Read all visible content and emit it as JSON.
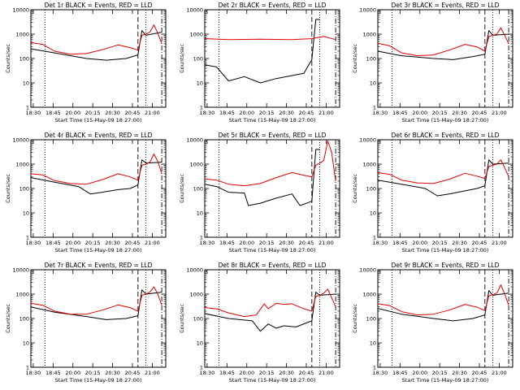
{
  "colors": {
    "events": "#000000",
    "lld": "#e00000",
    "axes": "#000000"
  },
  "chart_data": [
    {
      "type": "line",
      "title": "Det 1r  BLACK = Events, RED = LLD",
      "xlabel": "Start Time (15-May-09 18:27:00)",
      "ylabel": "Counts/sec",
      "yscale": "log",
      "ylim": [
        1,
        10000
      ],
      "grid": false,
      "x_ticks": [
        "18:30",
        "18:45",
        "20:00",
        "20:15",
        "20:30",
        "20:45",
        "21:00"
      ],
      "y_ticks": [
        "1",
        "10",
        "100",
        "1000",
        "10000"
      ],
      "series": [
        {
          "color": "black",
          "x_min": [
            0,
            30,
            70,
            95,
            120,
            135,
            140,
            145,
            165
          ],
          "values": [
            250,
            170,
            100,
            85,
            100,
            140,
            1400,
            900,
            1200
          ]
        },
        {
          "color": "red",
          "x_min": [
            0,
            15,
            30,
            50,
            70,
            90,
            110,
            125,
            135,
            140,
            145,
            150,
            155,
            160,
            165
          ],
          "values": [
            450,
            380,
            200,
            150,
            160,
            230,
            360,
            280,
            220,
            900,
            1000,
            1200,
            2400,
            1100,
            400
          ]
        }
      ],
      "markers": [
        {
          "x_min": 18,
          "style": "dotted"
        },
        {
          "x_min": 135,
          "style": "dashed"
        },
        {
          "x_min": 145,
          "style": "dotted"
        },
        {
          "x_min": 165,
          "style": "dash-dot"
        }
      ]
    },
    {
      "type": "line",
      "title": "Det 2r  BLACK = Events, RED = LLD",
      "xlabel": "Start Time (15-May-09 18:27:00)",
      "ylabel": "Counts/sec",
      "yscale": "log",
      "ylim": [
        1,
        10000
      ],
      "grid": false,
      "x_ticks": [
        "18:30",
        "18:45",
        "20:00",
        "20:15",
        "20:30",
        "20:45",
        "21:00"
      ],
      "y_ticks": [
        "1",
        "10",
        "100",
        "1000",
        "10000"
      ],
      "series": [
        {
          "color": "black",
          "x_min": [
            0,
            15,
            30,
            50,
            70,
            90,
            110,
            125,
            135,
            140,
            145
          ],
          "values": [
            55,
            45,
            12,
            18,
            10,
            15,
            20,
            25,
            90,
            4000,
            4000
          ]
        },
        {
          "color": "red",
          "x_min": [
            0,
            30,
            70,
            110,
            135,
            140,
            150,
            165
          ],
          "values": [
            650,
            600,
            620,
            600,
            650,
            700,
            800,
            600
          ]
        }
      ],
      "markers": [
        {
          "x_min": 18,
          "style": "dotted"
        },
        {
          "x_min": 135,
          "style": "dashed"
        },
        {
          "x_min": 145,
          "style": "dotted"
        },
        {
          "x_min": 165,
          "style": "dash-dot"
        }
      ]
    },
    {
      "type": "line",
      "title": "Det 3r  BLACK = Events, RED = LLD",
      "xlabel": "Start Time (15-May-09 18:27:00)",
      "ylabel": "Counts/sec",
      "yscale": "log",
      "ylim": [
        1,
        10000
      ],
      "grid": false,
      "x_ticks": [
        "18:30",
        "18:45",
        "20:00",
        "20:15",
        "20:30",
        "20:45",
        "21:00"
      ],
      "y_ticks": [
        "1",
        "10",
        "100",
        "1000",
        "10000"
      ],
      "series": [
        {
          "color": "black",
          "x_min": [
            0,
            30,
            70,
            95,
            120,
            135,
            140,
            145,
            165
          ],
          "values": [
            200,
            130,
            100,
            90,
            120,
            150,
            1400,
            900,
            1000
          ]
        },
        {
          "color": "red",
          "x_min": [
            0,
            15,
            30,
            50,
            70,
            90,
            110,
            125,
            135,
            140,
            145,
            150,
            155,
            160,
            165
          ],
          "values": [
            420,
            330,
            170,
            130,
            140,
            220,
            380,
            300,
            200,
            800,
            900,
            1000,
            1800,
            900,
            400
          ]
        }
      ],
      "markers": [
        {
          "x_min": 18,
          "style": "dotted"
        },
        {
          "x_min": 135,
          "style": "dashed"
        },
        {
          "x_min": 145,
          "style": "dotted"
        },
        {
          "x_min": 165,
          "style": "dash-dot"
        }
      ]
    },
    {
      "type": "line",
      "title": "Det 4r  BLACK = Events, RED = LLD",
      "xlabel": "Start Time (15-May-09 18:27:00)",
      "ylabel": "Counts/sec",
      "yscale": "log",
      "ylim": [
        1,
        10000
      ],
      "grid": false,
      "x_ticks": [
        "18:30",
        "18:45",
        "20:00",
        "20:15",
        "20:30",
        "20:45",
        "21:00"
      ],
      "y_ticks": [
        "1",
        "10",
        "100",
        "1000",
        "10000"
      ],
      "series": [
        {
          "color": "black",
          "x_min": [
            0,
            30,
            60,
            75,
            90,
            110,
            125,
            135,
            140,
            145,
            165
          ],
          "values": [
            280,
            180,
            120,
            60,
            70,
            90,
            100,
            140,
            1500,
            1100,
            1200
          ]
        },
        {
          "color": "red",
          "x_min": [
            0,
            15,
            30,
            50,
            70,
            90,
            110,
            125,
            135,
            140,
            145,
            150,
            155,
            160,
            165
          ],
          "values": [
            400,
            360,
            210,
            160,
            150,
            230,
            400,
            300,
            220,
            900,
            1000,
            1200,
            2600,
            1300,
            400
          ]
        }
      ],
      "markers": [
        {
          "x_min": 18,
          "style": "dotted"
        },
        {
          "x_min": 135,
          "style": "dashed"
        },
        {
          "x_min": 145,
          "style": "dotted"
        },
        {
          "x_min": 165,
          "style": "dash-dot"
        }
      ]
    },
    {
      "type": "line",
      "title": "Det 5r  BLACK = Events, RED = LLD",
      "xlabel": "Start Time (15-May-09 18:27:00)",
      "ylabel": "Counts/sec",
      "yscale": "log",
      "ylim": [
        1,
        10000
      ],
      "grid": false,
      "x_ticks": [
        "18:30",
        "18:45",
        "20:00",
        "20:15",
        "20:30",
        "20:45",
        "21:00"
      ],
      "y_ticks": [
        "1",
        "10",
        "100",
        "1000",
        "10000"
      ],
      "series": [
        {
          "color": "black",
          "x_min": [
            0,
            15,
            30,
            50,
            55,
            70,
            90,
            110,
            120,
            135,
            140,
            145
          ],
          "values": [
            150,
            120,
            70,
            65,
            20,
            25,
            40,
            60,
            20,
            30,
            4000,
            4000
          ]
        },
        {
          "color": "red",
          "x_min": [
            0,
            15,
            30,
            50,
            70,
            90,
            110,
            125,
            135,
            140,
            145,
            150,
            155,
            160,
            165
          ],
          "values": [
            250,
            220,
            150,
            130,
            160,
            280,
            450,
            350,
            300,
            900,
            1100,
            1400,
            9000,
            3000,
            200
          ]
        }
      ],
      "markers": [
        {
          "x_min": 18,
          "style": "dotted"
        },
        {
          "x_min": 135,
          "style": "dashed"
        },
        {
          "x_min": 145,
          "style": "dotted"
        },
        {
          "x_min": 165,
          "style": "dash-dot"
        }
      ]
    },
    {
      "type": "line",
      "title": "Det 6r  BLACK = Events, RED = LLD",
      "xlabel": "Start Time (15-May-09 18:27:00)",
      "ylabel": "Counts/sec",
      "yscale": "log",
      "ylim": [
        1,
        10000
      ],
      "grid": false,
      "x_ticks": [
        "18:30",
        "18:45",
        "20:00",
        "20:15",
        "20:30",
        "20:45",
        "21:00"
      ],
      "y_ticks": [
        "1",
        "10",
        "100",
        "1000",
        "10000"
      ],
      "series": [
        {
          "color": "black",
          "x_min": [
            0,
            30,
            60,
            75,
            90,
            110,
            125,
            135,
            140,
            145,
            165
          ],
          "values": [
            220,
            150,
            100,
            50,
            60,
            80,
            100,
            130,
            1500,
            1000,
            1100
          ]
        },
        {
          "color": "red",
          "x_min": [
            0,
            15,
            30,
            50,
            70,
            90,
            110,
            125,
            135,
            140,
            145,
            150,
            155,
            160,
            165
          ],
          "values": [
            450,
            380,
            220,
            170,
            160,
            240,
            420,
            320,
            260,
            800,
            900,
            1000,
            1500,
            700,
            300
          ]
        }
      ],
      "markers": [
        {
          "x_min": 18,
          "style": "dotted"
        },
        {
          "x_min": 135,
          "style": "dashed"
        },
        {
          "x_min": 145,
          "style": "dotted"
        },
        {
          "x_min": 165,
          "style": "dash-dot"
        }
      ]
    },
    {
      "type": "line",
      "title": "Det 7r  BLACK = Events, RED = LLD",
      "xlabel": "Start Time (15-May-09 18:27:00)",
      "ylabel": "Counts/sec",
      "yscale": "log",
      "ylim": [
        1,
        10000
      ],
      "grid": false,
      "x_ticks": [
        "18:30",
        "18:45",
        "20:00",
        "20:15",
        "20:30",
        "20:45",
        "21:00"
      ],
      "y_ticks": [
        "1",
        "10",
        "100",
        "1000",
        "10000"
      ],
      "series": [
        {
          "color": "black",
          "x_min": [
            0,
            30,
            70,
            95,
            120,
            135,
            140,
            145,
            165
          ],
          "values": [
            300,
            180,
            120,
            90,
            100,
            130,
            1500,
            1000,
            1200
          ]
        },
        {
          "color": "red",
          "x_min": [
            0,
            15,
            30,
            50,
            70,
            90,
            110,
            125,
            135,
            140,
            145,
            150,
            155,
            160,
            165
          ],
          "values": [
            420,
            350,
            200,
            150,
            150,
            220,
            360,
            280,
            200,
            900,
            1000,
            1200,
            2000,
            1000,
            350
          ]
        }
      ],
      "markers": [
        {
          "x_min": 18,
          "style": "dotted"
        },
        {
          "x_min": 135,
          "style": "dashed"
        },
        {
          "x_min": 145,
          "style": "dotted"
        },
        {
          "x_min": 165,
          "style": "dash-dot"
        }
      ]
    },
    {
      "type": "line",
      "title": "Det 8r  BLACK = Events, RED = LLD",
      "xlabel": "Start Time (15-May-09 18:27:00)",
      "ylabel": "Counts/sec",
      "yscale": "log",
      "ylim": [
        1,
        10000
      ],
      "grid": false,
      "x_ticks": [
        "18:30",
        "18:45",
        "20:00",
        "20:15",
        "20:30",
        "20:45",
        "21:00"
      ],
      "y_ticks": [
        "1",
        "10",
        "100",
        "1000",
        "10000"
      ],
      "series": [
        {
          "color": "black",
          "x_min": [
            0,
            30,
            60,
            70,
            80,
            90,
            100,
            115,
            135,
            140,
            145,
            165
          ],
          "values": [
            160,
            100,
            80,
            30,
            60,
            40,
            50,
            45,
            80,
            1200,
            900,
            1000
          ]
        },
        {
          "color": "red",
          "x_min": [
            0,
            15,
            30,
            50,
            65,
            75,
            80,
            90,
            100,
            110,
            125,
            135,
            140,
            145,
            150,
            155,
            160,
            165
          ],
          "values": [
            280,
            250,
            170,
            120,
            140,
            400,
            250,
            420,
            380,
            400,
            250,
            200,
            800,
            900,
            1100,
            1600,
            700,
            300
          ]
        }
      ],
      "markers": [
        {
          "x_min": 18,
          "style": "dotted"
        },
        {
          "x_min": 135,
          "style": "dashed"
        },
        {
          "x_min": 145,
          "style": "dotted"
        },
        {
          "x_min": 165,
          "style": "dash-dot"
        }
      ]
    },
    {
      "type": "line",
      "title": "Det 9r  BLACK = Events, RED = LLD",
      "xlabel": "Start Time (15-May-09 18:27:00)",
      "ylabel": "Counts/sec",
      "yscale": "log",
      "ylim": [
        1,
        10000
      ],
      "grid": false,
      "x_ticks": [
        "18:30",
        "18:45",
        "20:00",
        "20:15",
        "20:30",
        "20:45",
        "21:00"
      ],
      "y_ticks": [
        "1",
        "10",
        "100",
        "1000",
        "10000"
      ],
      "series": [
        {
          "color": "black",
          "x_min": [
            0,
            30,
            70,
            95,
            120,
            135,
            140,
            145,
            165
          ],
          "values": [
            260,
            150,
            100,
            80,
            100,
            140,
            1400,
            900,
            1100
          ]
        },
        {
          "color": "red",
          "x_min": [
            0,
            15,
            30,
            50,
            70,
            90,
            110,
            125,
            135,
            140,
            145,
            150,
            155,
            160,
            165
          ],
          "values": [
            400,
            340,
            190,
            140,
            150,
            220,
            380,
            290,
            210,
            850,
            950,
            1100,
            2400,
            1000,
            350
          ]
        }
      ],
      "markers": [
        {
          "x_min": 18,
          "style": "dotted"
        },
        {
          "x_min": 135,
          "style": "dashed"
        },
        {
          "x_min": 145,
          "style": "dotted"
        },
        {
          "x_min": 165,
          "style": "dash-dot"
        }
      ]
    }
  ]
}
